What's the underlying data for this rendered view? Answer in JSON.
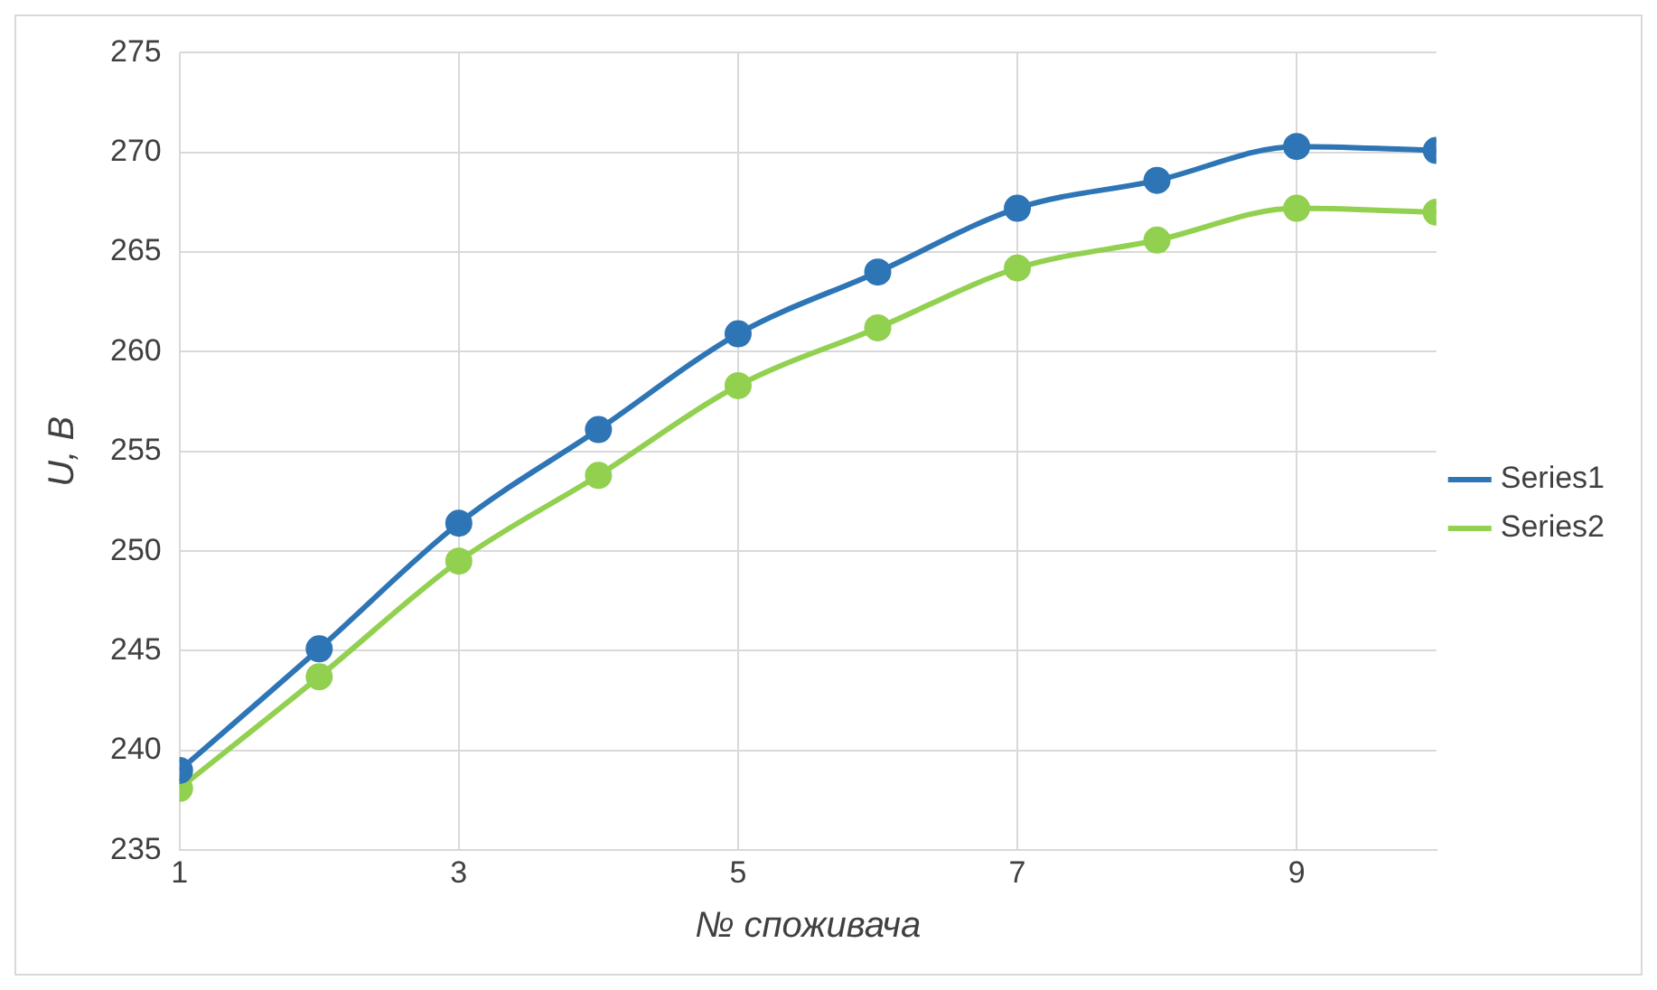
{
  "chart_data": {
    "type": "line",
    "xlabel": "№ споживача",
    "ylabel": "U, B",
    "x": [
      1,
      2,
      3,
      4,
      5,
      6,
      7,
      8,
      9,
      10
    ],
    "series": [
      {
        "name": "Series1",
        "color": "#2e75b6",
        "values": [
          239.0,
          245.1,
          251.4,
          256.1,
          260.9,
          264.0,
          267.2,
          268.6,
          270.3,
          270.1
        ]
      },
      {
        "name": "Series2",
        "color": "#92d050",
        "values": [
          238.1,
          243.7,
          249.5,
          253.8,
          258.3,
          261.2,
          264.2,
          265.6,
          267.2,
          267.0
        ]
      }
    ],
    "xlim": [
      1,
      10
    ],
    "xticks": [
      1,
      3,
      5,
      7,
      9
    ],
    "ylim": [
      235,
      275
    ],
    "yticks": [
      235,
      240,
      245,
      250,
      255,
      260,
      265,
      270,
      275
    ],
    "grid": true,
    "legend": "right",
    "marker": "circle",
    "line_style": "solid"
  }
}
